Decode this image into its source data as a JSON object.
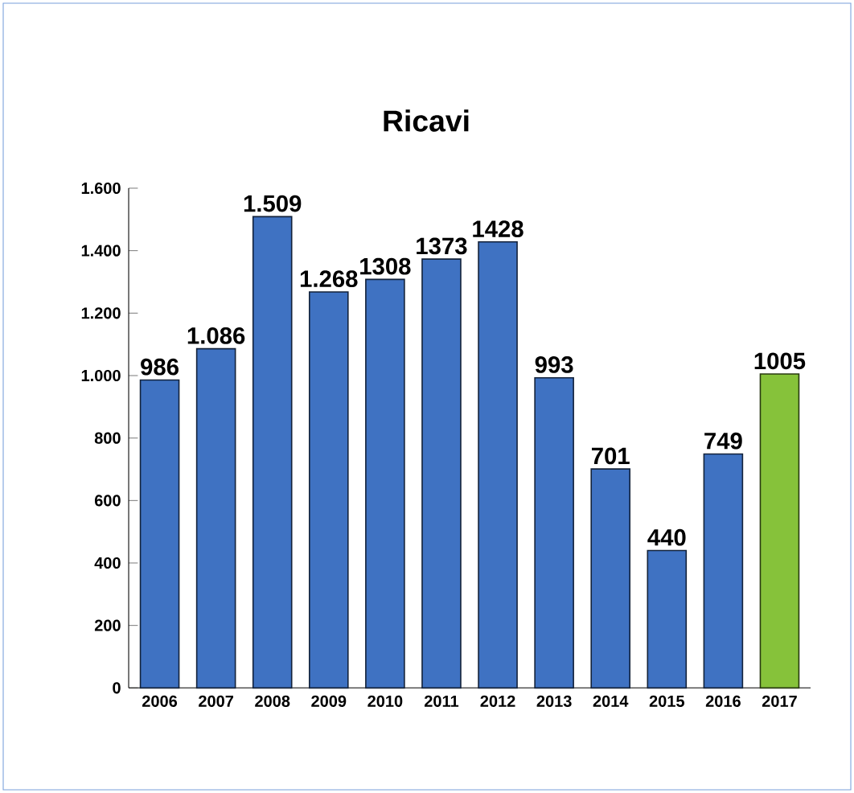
{
  "chart_data": {
    "type": "bar",
    "title": "Ricavi",
    "categories": [
      "2006",
      "2007",
      "2008",
      "2009",
      "2010",
      "2011",
      "2012",
      "2013",
      "2014",
      "2015",
      "2016",
      "2017"
    ],
    "values": [
      986,
      1086,
      1509,
      1268,
      1308,
      1373,
      1428,
      993,
      701,
      440,
      749,
      1005
    ],
    "value_labels": [
      "986",
      "1.086",
      "1.509",
      "1.268",
      "1308",
      "1373",
      "1428",
      "993",
      "701",
      "440",
      "749",
      "1005"
    ],
    "colors": [
      "#3f72c2",
      "#3f72c2",
      "#3f72c2",
      "#3f72c2",
      "#3f72c2",
      "#3f72c2",
      "#3f72c2",
      "#3f72c2",
      "#3f72c2",
      "#3f72c2",
      "#3f72c2",
      "#86c23a"
    ],
    "ylim": [
      0,
      1600
    ],
    "yticks": [
      0,
      200,
      400,
      600,
      800,
      {
        "value": 1000,
        "label": "1.000"
      },
      {
        "value": 1200,
        "label": "1.200"
      },
      {
        "value": 1400,
        "label": "1.400"
      },
      {
        "value": 1600,
        "label": "1.600"
      }
    ],
    "grid": false
  }
}
